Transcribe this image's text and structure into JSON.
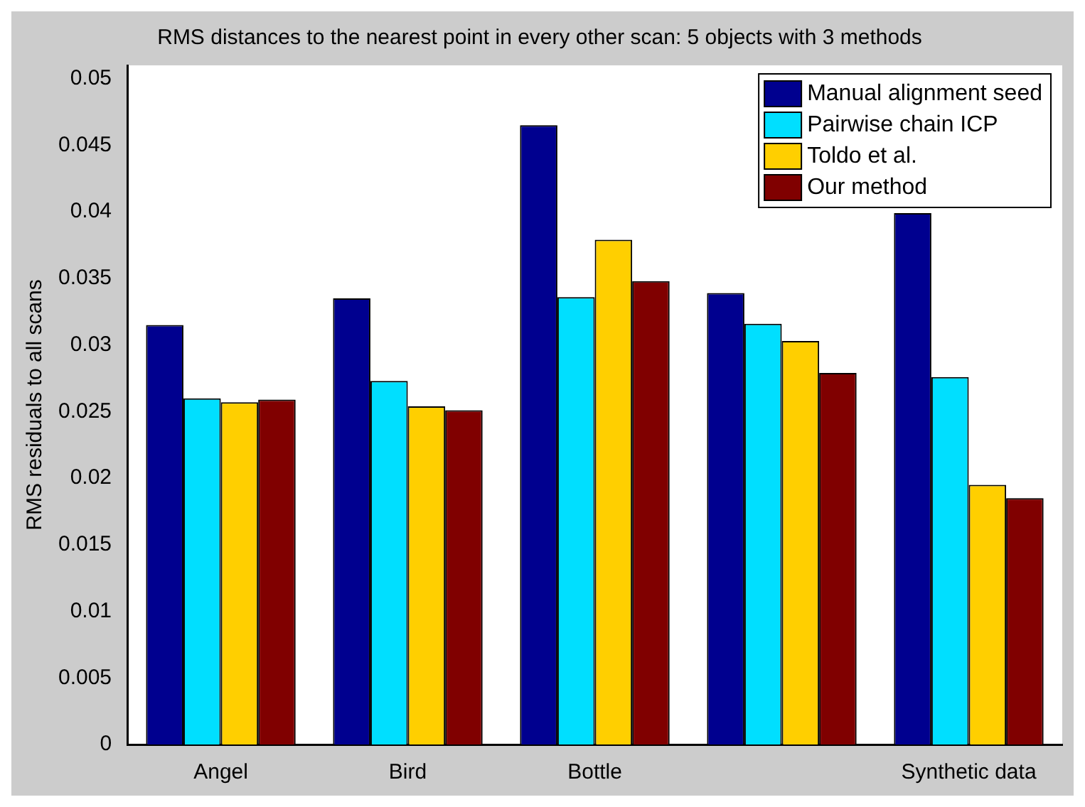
{
  "chart_data": {
    "type": "bar",
    "title": "RMS distances to the nearest point in every other scan: 5 objects with 3 methods",
    "ylabel": "RMS residuals to all scans",
    "categories": [
      "Angel",
      "Bird",
      "Bottle",
      null,
      "Synthetic data"
    ],
    "series": [
      {
        "name": "Manual alignment seed",
        "color": "#00008f",
        "values": [
          0.0315,
          0.0335,
          0.0465,
          0.0339,
          0.0399
        ]
      },
      {
        "name": "Pairwise chain ICP",
        "color": "#00dfff",
        "values": [
          0.026,
          0.0273,
          0.0336,
          0.0316,
          0.0276
        ]
      },
      {
        "name": "Toldo et al.",
        "color": "#ffcf00",
        "values": [
          0.0257,
          0.0254,
          0.0379,
          0.0303,
          0.0195
        ]
      },
      {
        "name": "Our method",
        "color": "#800000",
        "values": [
          0.0259,
          0.0251,
          0.0348,
          0.0279,
          0.0185
        ]
      }
    ],
    "ylim": [
      0,
      0.051
    ],
    "yticks": [
      0,
      0.005,
      0.01,
      0.015,
      0.02,
      0.025,
      0.03,
      0.035,
      0.04,
      0.045,
      0.05
    ],
    "grid": false,
    "legend": "top right"
  }
}
